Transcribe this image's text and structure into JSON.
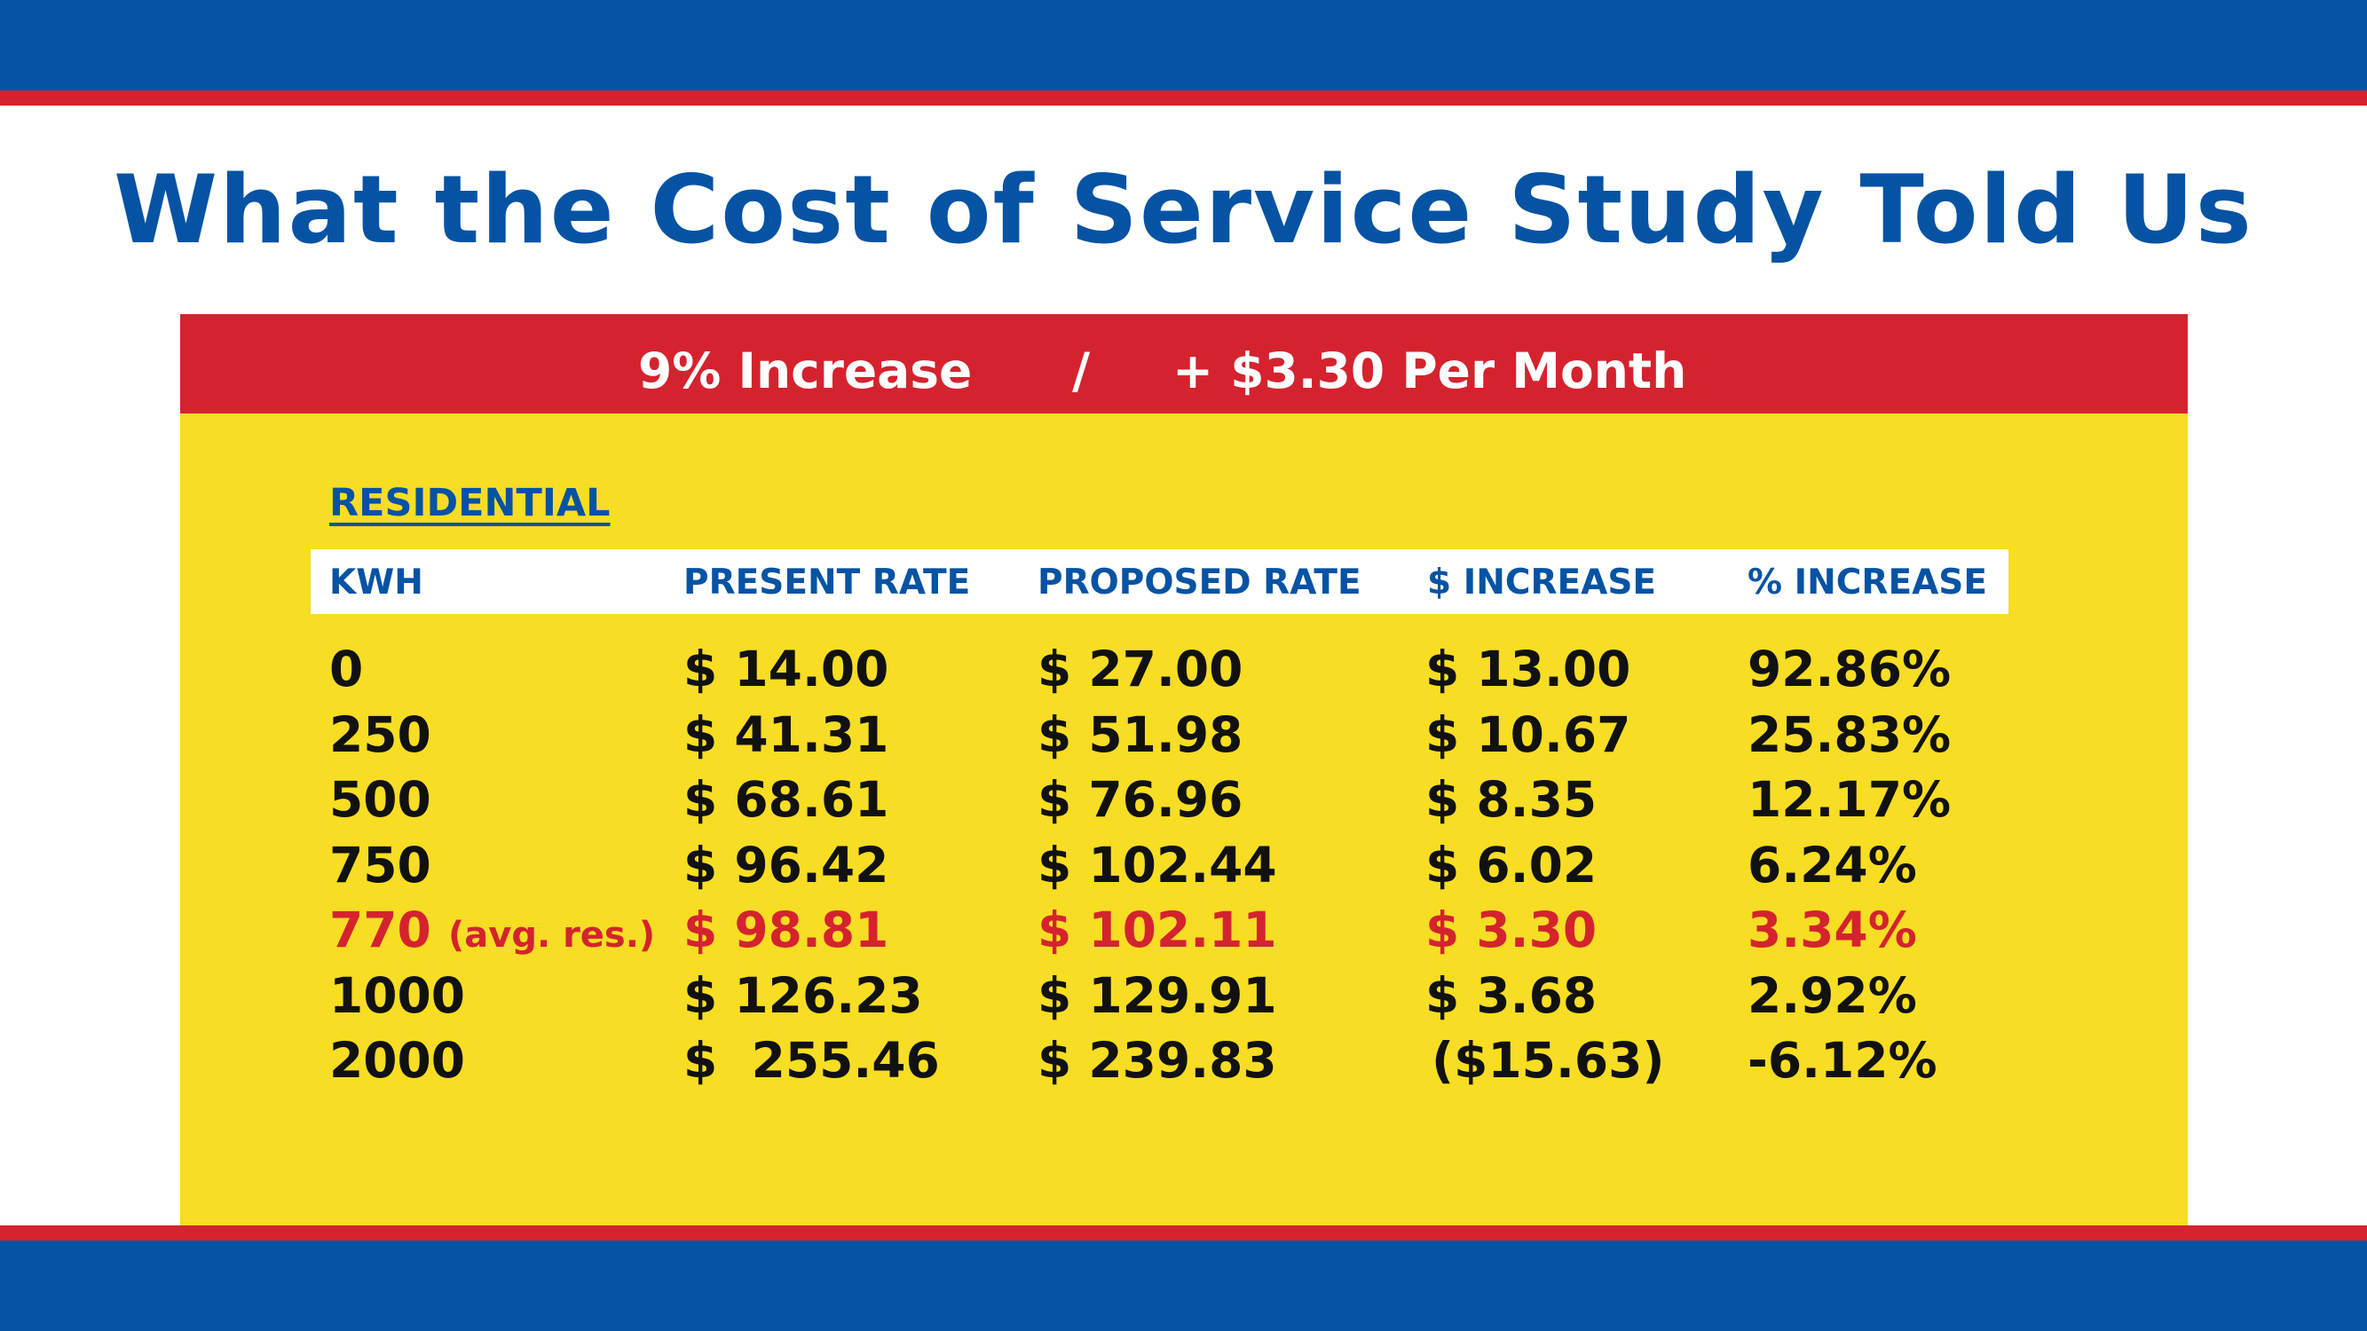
{
  "title": "What the Cost of Service Study Told Us",
  "banner": {
    "left": "9% Increase",
    "separator": "/",
    "right": "+ $3.30 Per Month"
  },
  "section_label": "RESIDENTIAL",
  "columns": [
    "KWH",
    "PRESENT RATE",
    "PROPOSED RATE",
    "$ INCREASE",
    "% INCREASE"
  ],
  "rows": [
    {
      "kwh": "0",
      "note": "",
      "present": "$ 14.00",
      "proposed": "$ 27.00",
      "increase": "$ 13.00",
      "pct": "92.86%"
    },
    {
      "kwh": "250",
      "note": "",
      "present": "$ 41.31",
      "proposed": "$ 51.98",
      "increase": "$ 10.67",
      "pct": "25.83%"
    },
    {
      "kwh": "500",
      "note": "",
      "present": "$ 68.61",
      "proposed": "$ 76.96",
      "increase": "$ 8.35",
      "pct": "12.17%"
    },
    {
      "kwh": "750",
      "note": "",
      "present": "$ 96.42",
      "proposed": "$ 102.44",
      "increase": "$ 6.02",
      "pct": "6.24%"
    },
    {
      "kwh": "770",
      "note": "(avg. res.)",
      "present": "$ 98.81",
      "proposed": "$ 102.11",
      "increase": "$ 3.30",
      "pct": "3.34%"
    },
    {
      "kwh": "1000",
      "note": "",
      "present": "$ 126.23",
      "proposed": "$ 129.91",
      "increase": "$ 3.68",
      "pct": "2.92%"
    },
    {
      "kwh": "2000",
      "note": "",
      "present": "$  255.46",
      "proposed": "$ 239.83",
      "increase": "($15.63)",
      "pct": "-6.12%"
    }
  ],
  "colors": {
    "brand_blue": "#0653a4",
    "accent_red": "#d4232e",
    "panel_yellow": "#f7dd23",
    "highlight_red": "#d4232e"
  }
}
